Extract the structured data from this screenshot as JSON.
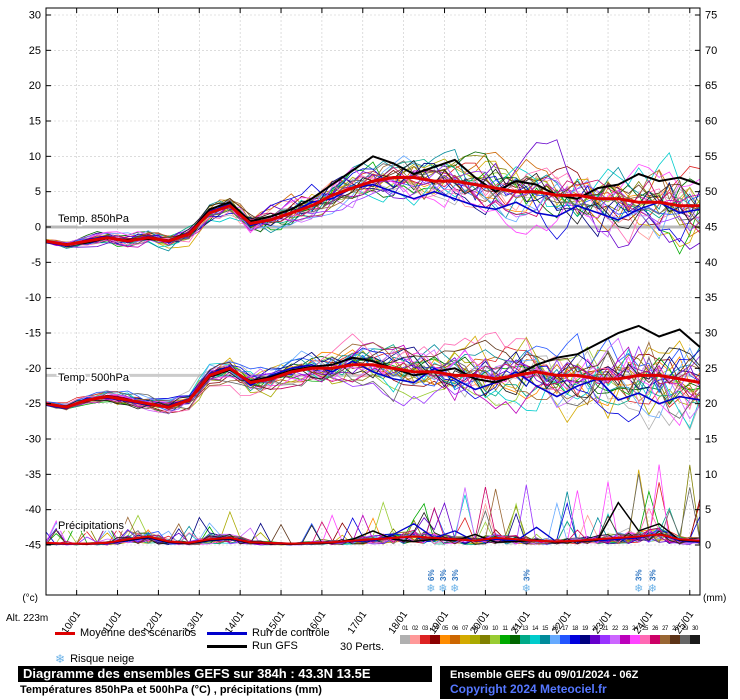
{
  "axis": {
    "left_unit": "(°c)",
    "right_unit": "(mm)",
    "alt_label": "Alt. 223m"
  },
  "legend": {
    "mean_label": "Moyenne des scénarios",
    "control_label": "Run de contrôle",
    "gfs_label": "Run GFS",
    "perts_label": "30 Perts.",
    "snow_label": "Risque neige",
    "snow_icon": "❄",
    "colors": {
      "mean": "#dd0000",
      "control": "#0000cc",
      "gfs": "#000000",
      "snow": "#6db3e8",
      "copyright": "#5577ff"
    },
    "member_numbers": [
      "01",
      "02",
      "03",
      "04",
      "05",
      "06",
      "07",
      "08",
      "09",
      "10",
      "11",
      "12",
      "13",
      "14",
      "15",
      "16",
      "17",
      "18",
      "19",
      "20",
      "21",
      "22",
      "23",
      "24",
      "25",
      "26",
      "27",
      "28",
      "29",
      "30"
    ],
    "member_colors": [
      "#b0b0b0",
      "#ff9999",
      "#dd2222",
      "#8b0000",
      "#ff8c00",
      "#cc6600",
      "#d4aa00",
      "#aaaa00",
      "#808000",
      "#99cc33",
      "#00aa00",
      "#006600",
      "#00aa88",
      "#00cccc",
      "#008b9b",
      "#66aaff",
      "#2255ff",
      "#0000dd",
      "#000080",
      "#6600cc",
      "#9933ff",
      "#cc66ff",
      "#bb00bb",
      "#ff44ff",
      "#ff69b4",
      "#cc0066",
      "#996633",
      "#5c3317",
      "#666666",
      "#1a1a1a"
    ]
  },
  "footer": {
    "title": "Diagramme des ensembles GEFS sur 384h : 43.3N 13.5E",
    "subtitle": "Températures 850hPa et 500hPa (°C) , précipitations (mm)",
    "run_info": "Ensemble GEFS du 09/01/2024 - 06Z",
    "copyright": "Copyright 2024 Meteociel.fr"
  },
  "chart_data": {
    "type": "line",
    "x_hours_step": 12,
    "x_hours_max": 384,
    "date_labels": [
      "10/01",
      "11/01",
      "12/01",
      "13/01",
      "14/01",
      "15/01",
      "16/01",
      "17/01",
      "18/01",
      "19/01",
      "20/01",
      "21/01",
      "22/01",
      "23/01",
      "24/01",
      "25/01"
    ],
    "ylim_temp": [
      -45,
      30
    ],
    "ylim_precip": [
      0,
      75
    ],
    "grid": true,
    "section_labels": {
      "t850": "Temp. 850hPa",
      "t500": "Temp. 500hPa",
      "precip": "Précipitations"
    },
    "normals": {
      "t850": 0,
      "t500": -21
    },
    "series": {
      "mean_850": [
        -2,
        -2.5,
        -2,
        -1.5,
        -2,
        -1.5,
        -2,
        -1,
        2,
        3,
        0.5,
        1,
        2,
        3,
        4.5,
        5.5,
        6.5,
        7,
        7,
        6.5,
        6.5,
        6,
        5.5,
        5,
        5,
        4.5,
        4.5,
        4,
        4,
        3.5,
        3.5,
        3,
        3
      ],
      "control_850": [
        -2.2,
        -2.7,
        -1.8,
        -1.3,
        -2.2,
        -1.3,
        -2.2,
        -0.8,
        2.2,
        3.2,
        0.2,
        1,
        2,
        3.5,
        4,
        5.5,
        6,
        5,
        4,
        5,
        4,
        3,
        2.5,
        3.5,
        2,
        1.5,
        3,
        2,
        1,
        2.5,
        3.5,
        2,
        2.5
      ],
      "gfs_850": [
        -2.1,
        -2.4,
        -2.2,
        -1.6,
        -1.8,
        -1.7,
        -1.9,
        -0.9,
        2.5,
        3.5,
        0.8,
        1.5,
        2.5,
        4,
        6,
        8,
        10,
        9,
        7.5,
        8.5,
        9.5,
        7,
        5,
        6.5,
        6,
        4.5,
        4,
        5.5,
        6,
        7.5,
        6.5,
        7,
        6
      ],
      "mean_500": [
        -25,
        -25.5,
        -24.5,
        -24,
        -24.5,
        -25,
        -25.5,
        -24.5,
        -21,
        -20,
        -22,
        -21.5,
        -20.5,
        -20,
        -20,
        -19.5,
        -19.5,
        -20,
        -20.5,
        -20.5,
        -21,
        -21,
        -21.5,
        -21,
        -20.5,
        -21,
        -21,
        -21.5,
        -21.5,
        -21,
        -21,
        -21.5,
        -22
      ],
      "control_500": [
        -25.2,
        -25.7,
        -24.3,
        -24.2,
        -24.7,
        -25.2,
        -25.3,
        -24.3,
        -20.8,
        -19.8,
        -22.4,
        -21,
        -20,
        -19.5,
        -20.5,
        -19,
        -20.5,
        -21.5,
        -22,
        -20,
        -21.5,
        -23,
        -22,
        -20.5,
        -22.5,
        -24,
        -22.5,
        -21.5,
        -24.5,
        -23.5,
        -25,
        -24,
        -24.5
      ],
      "gfs_500": [
        -25.1,
        -25.4,
        -24.6,
        -23.9,
        -24.4,
        -25.1,
        -25.4,
        -24.6,
        -21.2,
        -20.2,
        -21.8,
        -21.2,
        -20.3,
        -19.8,
        -19.5,
        -18.5,
        -19,
        -20,
        -21,
        -20.5,
        -20,
        -21.5,
        -22,
        -21,
        -19.5,
        -18.5,
        -18,
        -16.5,
        -15,
        -14,
        -15.5,
        -14.5,
        -17
      ],
      "mean_precip": [
        0.3,
        0.2,
        0.2,
        0.3,
        0.8,
        1.2,
        0.5,
        0.3,
        0.8,
        1,
        0.4,
        0.3,
        0.2,
        0.3,
        0.4,
        0.6,
        0.8,
        1,
        1.2,
        1,
        0.8,
        0.6,
        1,
        0.8,
        0.6,
        0.5,
        0.6,
        0.8,
        1,
        1.2,
        1.5,
        0.8,
        0.6
      ],
      "control_precip": [
        0.2,
        0.1,
        0.2,
        0.2,
        0.6,
        1,
        0.3,
        0.2,
        0.6,
        0.8,
        0.3,
        0.2,
        0.2,
        0.2,
        0.3,
        0.5,
        0.6,
        1.5,
        3,
        1,
        2,
        0.5,
        0.8,
        0.6,
        2.5,
        0.4,
        0.5,
        0.6,
        0.8,
        1,
        1.5,
        0.6,
        0.4
      ],
      "gfs_precip": [
        0.2,
        0.2,
        0.1,
        0.3,
        0.7,
        1.1,
        0.4,
        0.2,
        0.7,
        0.9,
        0.3,
        0.2,
        0.1,
        0.2,
        0.3,
        0.8,
        2,
        0.8,
        0.5,
        0.8,
        0.6,
        1.5,
        0.4,
        0.5,
        0.7,
        0.4,
        0.5,
        0.7,
        6,
        2,
        3,
        0.7,
        0.5
      ]
    },
    "ensemble": {
      "count": 30,
      "spread_850_end": 3.2,
      "spread_500_end": 3.4
    },
    "snow_risk": [
      {
        "hour": 226,
        "label": "6%"
      },
      {
        "hour": 233,
        "label": "3%"
      },
      {
        "hour": 240,
        "label": "3%"
      },
      {
        "hour": 282,
        "label": "3%"
      },
      {
        "hour": 348,
        "label": "3%"
      },
      {
        "hour": 356,
        "label": "3%"
      }
    ]
  }
}
